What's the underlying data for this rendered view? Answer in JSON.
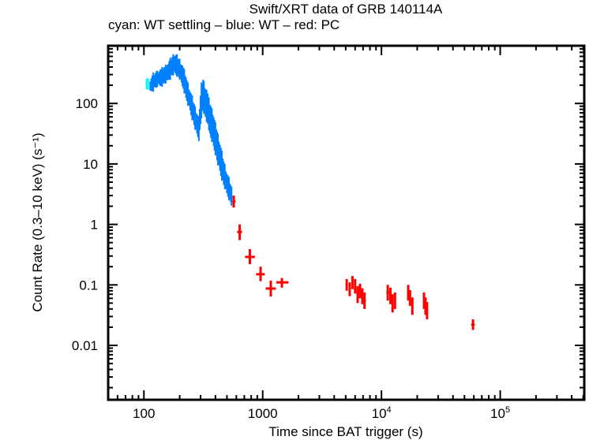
{
  "chart_data": {
    "type": "scatter",
    "title": "Swift/XRT data of GRB 140114A",
    "subtitle": "cyan: WT settling – blue: WT – red: PC",
    "xlabel": "Time since BAT trigger (s)",
    "ylabel": "Count Rate (0.3–10 keV) (s⁻¹)",
    "xscale": "log",
    "yscale": "log",
    "xlim": [
      50,
      510000
    ],
    "ylim": [
      0.00126,
      900
    ],
    "grid": false,
    "legend": "none (color key in subtitle)",
    "x_ticks": [
      {
        "value": 100,
        "label": "100"
      },
      {
        "value": 1000,
        "label": "1000"
      },
      {
        "value": 10000,
        "label": "10⁴"
      },
      {
        "value": 100000,
        "label": "10⁵"
      }
    ],
    "y_ticks": [
      {
        "value": 100,
        "label": "100"
      },
      {
        "value": 10,
        "label": "10"
      },
      {
        "value": 1,
        "label": "1"
      },
      {
        "value": 0.1,
        "label": "0.1"
      },
      {
        "value": 0.01,
        "label": "0.01"
      }
    ],
    "series": [
      {
        "name": "WT settling",
        "color": "#00ffff",
        "points": [
          {
            "t": 107,
            "rate": 210,
            "lo": 170,
            "hi": 260
          }
        ]
      },
      {
        "name": "WT",
        "color": "#0080ff",
        "band": [
          {
            "t": 113,
            "lo": 150,
            "hi": 250
          },
          {
            "t": 120,
            "lo": 170,
            "hi": 300
          },
          {
            "t": 130,
            "lo": 200,
            "hi": 330
          },
          {
            "t": 140,
            "lo": 200,
            "hi": 360
          },
          {
            "t": 150,
            "lo": 220,
            "hi": 400
          },
          {
            "t": 160,
            "lo": 240,
            "hi": 460
          },
          {
            "t": 170,
            "lo": 280,
            "hi": 560
          },
          {
            "t": 180,
            "lo": 320,
            "hi": 650
          },
          {
            "t": 190,
            "lo": 300,
            "hi": 600
          },
          {
            "t": 200,
            "lo": 260,
            "hi": 520
          },
          {
            "t": 215,
            "lo": 180,
            "hi": 380
          },
          {
            "t": 230,
            "lo": 110,
            "hi": 240
          },
          {
            "t": 245,
            "lo": 75,
            "hi": 160
          },
          {
            "t": 260,
            "lo": 50,
            "hi": 110
          },
          {
            "t": 275,
            "lo": 34,
            "hi": 75
          },
          {
            "t": 290,
            "lo": 26,
            "hi": 55
          },
          {
            "t": 305,
            "lo": 60,
            "hi": 210
          },
          {
            "t": 315,
            "lo": 80,
            "hi": 240
          },
          {
            "t": 330,
            "lo": 60,
            "hi": 170
          },
          {
            "t": 345,
            "lo": 45,
            "hi": 150
          },
          {
            "t": 360,
            "lo": 30,
            "hi": 100
          },
          {
            "t": 380,
            "lo": 22,
            "hi": 70
          },
          {
            "t": 400,
            "lo": 15,
            "hi": 45
          },
          {
            "t": 420,
            "lo": 10,
            "hi": 30
          },
          {
            "t": 445,
            "lo": 6.5,
            "hi": 18
          },
          {
            "t": 470,
            "lo": 4.5,
            "hi": 11
          },
          {
            "t": 500,
            "lo": 3.2,
            "hi": 7
          },
          {
            "t": 530,
            "lo": 2.5,
            "hi": 5
          },
          {
            "t": 555,
            "lo": 2.0,
            "hi": 3.5
          }
        ]
      },
      {
        "name": "PC",
        "color": "#ff0000",
        "points": [
          {
            "t": 570,
            "rate": 2.4,
            "lo": 1.9,
            "hi": 3.0,
            "tlo": 555,
            "thi": 590
          },
          {
            "t": 640,
            "rate": 0.75,
            "lo": 0.55,
            "hi": 1.0,
            "tlo": 610,
            "thi": 670
          },
          {
            "t": 780,
            "rate": 0.29,
            "lo": 0.22,
            "hi": 0.39,
            "tlo": 710,
            "thi": 860
          },
          {
            "t": 960,
            "rate": 0.15,
            "lo": 0.115,
            "hi": 0.2,
            "tlo": 880,
            "thi": 1040
          },
          {
            "t": 1170,
            "rate": 0.087,
            "lo": 0.064,
            "hi": 0.118,
            "tlo": 1060,
            "thi": 1290
          },
          {
            "t": 1450,
            "rate": 0.11,
            "lo": 0.09,
            "hi": 0.13,
            "tlo": 1300,
            "thi": 1650
          },
          {
            "t": 5100,
            "rate": 0.1,
            "lo": 0.08,
            "hi": 0.125,
            "tlo": 5000,
            "thi": 5200
          },
          {
            "t": 5400,
            "rate": 0.085,
            "lo": 0.065,
            "hi": 0.11,
            "tlo": 5300,
            "thi": 5500
          },
          {
            "t": 5700,
            "rate": 0.11,
            "lo": 0.085,
            "hi": 0.14,
            "tlo": 5600,
            "thi": 5800
          },
          {
            "t": 6000,
            "rate": 0.095,
            "lo": 0.072,
            "hi": 0.125,
            "tlo": 5900,
            "thi": 6100
          },
          {
            "t": 6300,
            "rate": 0.07,
            "lo": 0.05,
            "hi": 0.095,
            "tlo": 6200,
            "thi": 6400
          },
          {
            "t": 6600,
            "rate": 0.08,
            "lo": 0.06,
            "hi": 0.105,
            "tlo": 6500,
            "thi": 6700
          },
          {
            "t": 6900,
            "rate": 0.065,
            "lo": 0.048,
            "hi": 0.088,
            "tlo": 6800,
            "thi": 7000
          },
          {
            "t": 7200,
            "rate": 0.055,
            "lo": 0.04,
            "hi": 0.075,
            "tlo": 7100,
            "thi": 7400
          },
          {
            "t": 11300,
            "rate": 0.075,
            "lo": 0.055,
            "hi": 0.1,
            "tlo": 11000,
            "thi": 11600
          },
          {
            "t": 11900,
            "rate": 0.065,
            "lo": 0.048,
            "hi": 0.09,
            "tlo": 11700,
            "thi": 12100
          },
          {
            "t": 12400,
            "rate": 0.05,
            "lo": 0.035,
            "hi": 0.07,
            "tlo": 12200,
            "thi": 12600
          },
          {
            "t": 13000,
            "rate": 0.055,
            "lo": 0.04,
            "hi": 0.075,
            "tlo": 12800,
            "thi": 13200
          },
          {
            "t": 16800,
            "rate": 0.075,
            "lo": 0.055,
            "hi": 0.1,
            "tlo": 16500,
            "thi": 17100
          },
          {
            "t": 17400,
            "rate": 0.06,
            "lo": 0.045,
            "hi": 0.082,
            "tlo": 17200,
            "thi": 17700
          },
          {
            "t": 18200,
            "rate": 0.045,
            "lo": 0.032,
            "hi": 0.062,
            "tlo": 17900,
            "thi": 18500
          },
          {
            "t": 22800,
            "rate": 0.055,
            "lo": 0.04,
            "hi": 0.075,
            "tlo": 22500,
            "thi": 23100
          },
          {
            "t": 23500,
            "rate": 0.045,
            "lo": 0.032,
            "hi": 0.062,
            "tlo": 23200,
            "thi": 23800
          },
          {
            "t": 24200,
            "rate": 0.038,
            "lo": 0.027,
            "hi": 0.052,
            "tlo": 23900,
            "thi": 24600
          },
          {
            "t": 59000,
            "rate": 0.022,
            "lo": 0.018,
            "hi": 0.027,
            "tlo": 57000,
            "thi": 61000
          }
        ]
      }
    ]
  }
}
